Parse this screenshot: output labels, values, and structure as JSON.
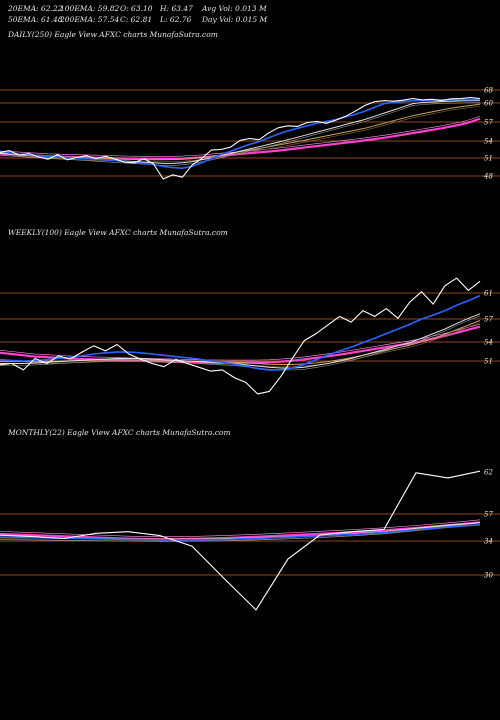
{
  "header": {
    "row1": [
      "20EMA: 62.22",
      "100EMA: 59.82",
      "O: 63.10",
      "H: 63.47",
      "Avg Vol: 0.013 M"
    ],
    "row2": [
      "50EMA: 61.48",
      "200EMA: 57.54",
      "C: 62.81",
      "L: 62.76",
      "Day Vol: 0.015 M"
    ]
  },
  "colors": {
    "background": "#000000",
    "hline": "#c0622a",
    "price": "#ffffff",
    "ema20": "#2a64ff",
    "ema50": "#e0e0e0",
    "ema100": "#c8a060",
    "ema200": "#ff40d0"
  },
  "chart_data": [
    {
      "type": "line",
      "title": "DAILY(250) Eagle  View AFXC charts MunafaSutra.com",
      "ylim": [
        45,
        70
      ],
      "hlines": [
        68,
        60,
        57,
        54,
        51,
        48
      ],
      "ticks": [
        "68",
        "60",
        "57",
        "54",
        "51",
        "48"
      ],
      "series": [
        {
          "name": "price",
          "values": [
            52,
            52.3,
            51.5,
            51.8,
            51.2,
            50.8,
            51.6,
            50.7,
            51.1,
            51.4,
            50.9,
            51.3,
            50.8,
            50.3,
            50.2,
            50.9,
            50,
            47.5,
            48.2,
            47.8,
            49.8,
            50.9,
            52.4,
            52.5,
            52.9,
            54.1,
            54.4,
            54.2,
            55.3,
            56.1,
            56.4,
            56.3,
            56.9,
            57.1,
            56.8,
            57.3,
            57.9,
            58.7,
            59.6,
            60.8,
            61.4,
            61.1,
            61.7,
            62.8,
            61.9,
            62.3,
            61.5,
            62.6,
            62.8,
            63.4,
            62.8
          ]
        },
        {
          "name": "ema20",
          "values": [
            52.2,
            51.9,
            51.7,
            51.6,
            51.4,
            51.3,
            51.2,
            51.1,
            51,
            50.9,
            50.8,
            50.7,
            50.6,
            50.4,
            50.2,
            50.1,
            49.9,
            49.6,
            49.4,
            49.3,
            49.6,
            50.2,
            50.9,
            51.6,
            52.2,
            52.8,
            53.4,
            53.9,
            54.5,
            55.1,
            55.6,
            56,
            56.4,
            56.8,
            57.1,
            57.4,
            57.8,
            58.2,
            58.7,
            59.3,
            59.9,
            60.4,
            60.9,
            61.4,
            61.6,
            61.8,
            61.9,
            62,
            62.1,
            62.2,
            62.22
          ]
        },
        {
          "name": "ema50",
          "values": [
            51.8,
            51.7,
            51.6,
            51.5,
            51.4,
            51.3,
            51.2,
            51.1,
            51,
            50.9,
            50.8,
            50.7,
            50.6,
            50.5,
            50.4,
            50.3,
            50.2,
            50.1,
            50.1,
            50.2,
            50.4,
            50.7,
            51,
            51.4,
            51.8,
            52.2,
            52.6,
            53,
            53.4,
            53.8,
            54.2,
            54.6,
            55,
            55.4,
            55.8,
            56.2,
            56.6,
            57,
            57.4,
            57.9,
            58.4,
            58.9,
            59.4,
            59.9,
            60.3,
            60.6,
            60.9,
            61.1,
            61.3,
            61.4,
            61.48
          ]
        },
        {
          "name": "ema100",
          "values": [
            51.9,
            51.8,
            51.7,
            51.6,
            51.5,
            51.4,
            51.3,
            51.2,
            51.1,
            51,
            50.95,
            50.9,
            50.85,
            50.8,
            50.75,
            50.7,
            50.7,
            50.7,
            50.75,
            50.8,
            50.9,
            51.1,
            51.3,
            51.5,
            51.8,
            52.1,
            52.4,
            52.7,
            53,
            53.3,
            53.6,
            53.9,
            54.2,
            54.5,
            54.8,
            55.1,
            55.4,
            55.7,
            56,
            56.4,
            56.8,
            57.2,
            57.6,
            58,
            58.3,
            58.6,
            58.9,
            59.2,
            59.4,
            59.6,
            59.82
          ]
        },
        {
          "name": "ema200",
          "values": [
            51.8,
            51.7,
            51.6,
            51.5,
            51.4,
            51.3,
            51.25,
            51.2,
            51.15,
            51.1,
            51.05,
            51,
            50.95,
            50.9,
            50.88,
            50.86,
            50.85,
            50.85,
            50.87,
            50.9,
            51,
            51.1,
            51.25,
            51.4,
            51.55,
            51.7,
            51.85,
            52,
            52.15,
            52.3,
            52.5,
            52.7,
            52.9,
            53.1,
            53.3,
            53.5,
            53.7,
            53.9,
            54.1,
            54.3,
            54.5,
            54.75,
            55,
            55.25,
            55.5,
            55.75,
            56,
            56.3,
            56.6,
            57,
            57.54
          ]
        }
      ]
    },
    {
      "type": "line",
      "title": "WEEKLY(100) Eagle  View AFXC charts MunafaSutra.com",
      "ylim": [
        44,
        68
      ],
      "hlines": [
        61,
        57,
        54,
        51
      ],
      "ticks": [
        "61",
        "57",
        "54",
        "51"
      ],
      "series": [
        {
          "name": "price",
          "values": [
            50.4,
            50.6,
            49.6,
            51.4,
            50.6,
            51.8,
            51.3,
            52.4,
            53.4,
            52.6,
            53.6,
            52.1,
            51.3,
            50.6,
            50.1,
            51.2,
            50.6,
            50,
            49.4,
            49.6,
            48.4,
            47.6,
            45.8,
            46.2,
            48.6,
            51.5,
            54.2,
            55.1,
            56.2,
            57.4,
            56.6,
            58.3,
            57.4,
            58.6,
            57.1,
            59.6,
            61.2,
            59.3,
            62.1,
            63.3,
            61.4,
            62.8
          ]
        },
        {
          "name": "ema20",
          "values": [
            51.2,
            51.1,
            51,
            51.1,
            51.2,
            51.4,
            51.6,
            51.8,
            52.1,
            52.3,
            52.4,
            52.4,
            52.3,
            52.1,
            51.9,
            51.7,
            51.5,
            51.3,
            51,
            50.8,
            50.5,
            50.2,
            49.8,
            49.6,
            49.6,
            49.9,
            50.5,
            51.2,
            51.9,
            52.6,
            53.2,
            53.9,
            54.5,
            55.1,
            55.7,
            56.3,
            57,
            57.6,
            58.3,
            59.1,
            59.8,
            60.6
          ]
        },
        {
          "name": "ema50",
          "values": [
            50.6,
            50.6,
            50.6,
            50.7,
            50.8,
            50.9,
            51,
            51.1,
            51.2,
            51.3,
            51.4,
            51.4,
            51.4,
            51.3,
            51.2,
            51.1,
            51,
            50.9,
            50.8,
            50.7,
            50.6,
            50.4,
            50.2,
            50,
            49.9,
            49.9,
            50,
            50.3,
            50.6,
            51,
            51.4,
            51.9,
            52.4,
            52.9,
            53.4,
            53.9,
            54.5,
            55.1,
            55.7,
            56.4,
            57.1,
            57.8
          ]
        },
        {
          "name": "ema100",
          "values": [
            50.9,
            50.9,
            50.9,
            50.9,
            50.95,
            51,
            51.05,
            51.1,
            51.15,
            51.2,
            51.2,
            51.2,
            51.2,
            51.15,
            51.1,
            51.05,
            51,
            50.95,
            50.9,
            50.85,
            50.8,
            50.7,
            50.6,
            50.5,
            50.45,
            50.45,
            50.55,
            50.7,
            50.9,
            51.2,
            51.5,
            51.9,
            52.3,
            52.7,
            53.1,
            53.5,
            54,
            54.5,
            55,
            55.6,
            56.2,
            56.8
          ]
        },
        {
          "name": "ema200",
          "values": [
            52.3,
            52.1,
            51.9,
            51.7,
            51.6,
            51.5,
            51.4,
            51.3,
            51.25,
            51.2,
            51.15,
            51.1,
            51.05,
            51,
            50.95,
            50.9,
            50.85,
            50.8,
            50.78,
            50.76,
            50.75,
            50.75,
            50.76,
            50.8,
            50.9,
            51.05,
            51.25,
            51.5,
            51.75,
            52,
            52.3,
            52.6,
            52.9,
            53.2,
            53.5,
            53.8,
            54.1,
            54.45,
            54.8,
            55.2,
            55.6,
            56
          ]
        }
      ]
    },
    {
      "type": "line",
      "title": "MONTHLY(22) Eagle  View AFXC charts MunafaSutra.com",
      "ylim": [
        28,
        66
      ],
      "hlines": [
        57,
        34,
        30
      ],
      "ticks": [
        "62",
        "57",
        "34",
        "30"
      ],
      "series": [
        {
          "name": "price",
          "values": [
            38.9,
            37.8,
            36.1,
            40.6,
            41.9,
            38.6,
            33.4,
            29.6,
            25.9,
            31.9,
            39.1,
            41.9,
            43.9,
            61.9,
            61.3,
            62.1
          ]
        },
        {
          "name": "ema20",
          "values": [
            37.3,
            36.9,
            36.4,
            35.9,
            35.4,
            35,
            35,
            35.4,
            36.2,
            37.2,
            38.4,
            39.6,
            41.3,
            43.6,
            45.9,
            47.8
          ]
        },
        {
          "name": "ema50",
          "values": [
            37,
            36.7,
            36.3,
            35.9,
            35.6,
            35.4,
            35.5,
            35.9,
            36.7,
            37.6,
            38.7,
            40.1,
            41.9,
            44.8,
            47.6,
            49.7
          ]
        },
        {
          "name": "ema100",
          "values": [
            36.8,
            36.6,
            36.4,
            36.1,
            35.9,
            35.7,
            35.7,
            36,
            36.6,
            37.5,
            38.6,
            40,
            41.8,
            44.4,
            47,
            49.4
          ]
        },
        {
          "name": "ema200",
          "values": [
            40,
            39,
            38,
            37,
            36,
            35.5,
            35.8,
            36.5,
            37.6,
            38.8,
            40.1,
            41.5,
            43.1,
            45.1,
            47.3,
            49.9
          ]
        }
      ]
    }
  ]
}
